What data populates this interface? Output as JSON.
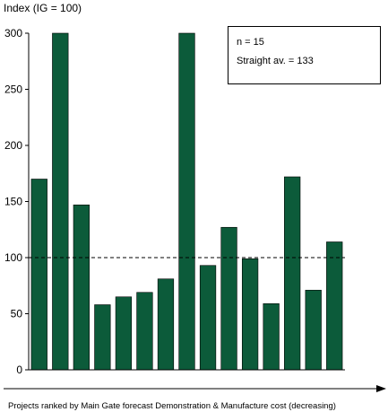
{
  "chart_data": {
    "type": "bar",
    "ylabel": "Index (IG = 100)",
    "xlabel": "Projects ranked by Main Gate forecast Demonstration & Manufacture cost (decreasing)",
    "ylim": [
      0,
      300
    ],
    "yticks": [
      0,
      50,
      100,
      150,
      200,
      250,
      300
    ],
    "values": [
      170,
      300,
      147,
      58,
      65,
      69,
      81,
      300,
      93,
      127,
      99,
      59,
      172,
      71,
      114
    ],
    "reference_line": {
      "value": 100,
      "style": "dashed"
    },
    "bar_color": "#0c5b3a",
    "grid": false,
    "annotations": [
      "n = 15",
      "Straight av. = 133"
    ]
  }
}
